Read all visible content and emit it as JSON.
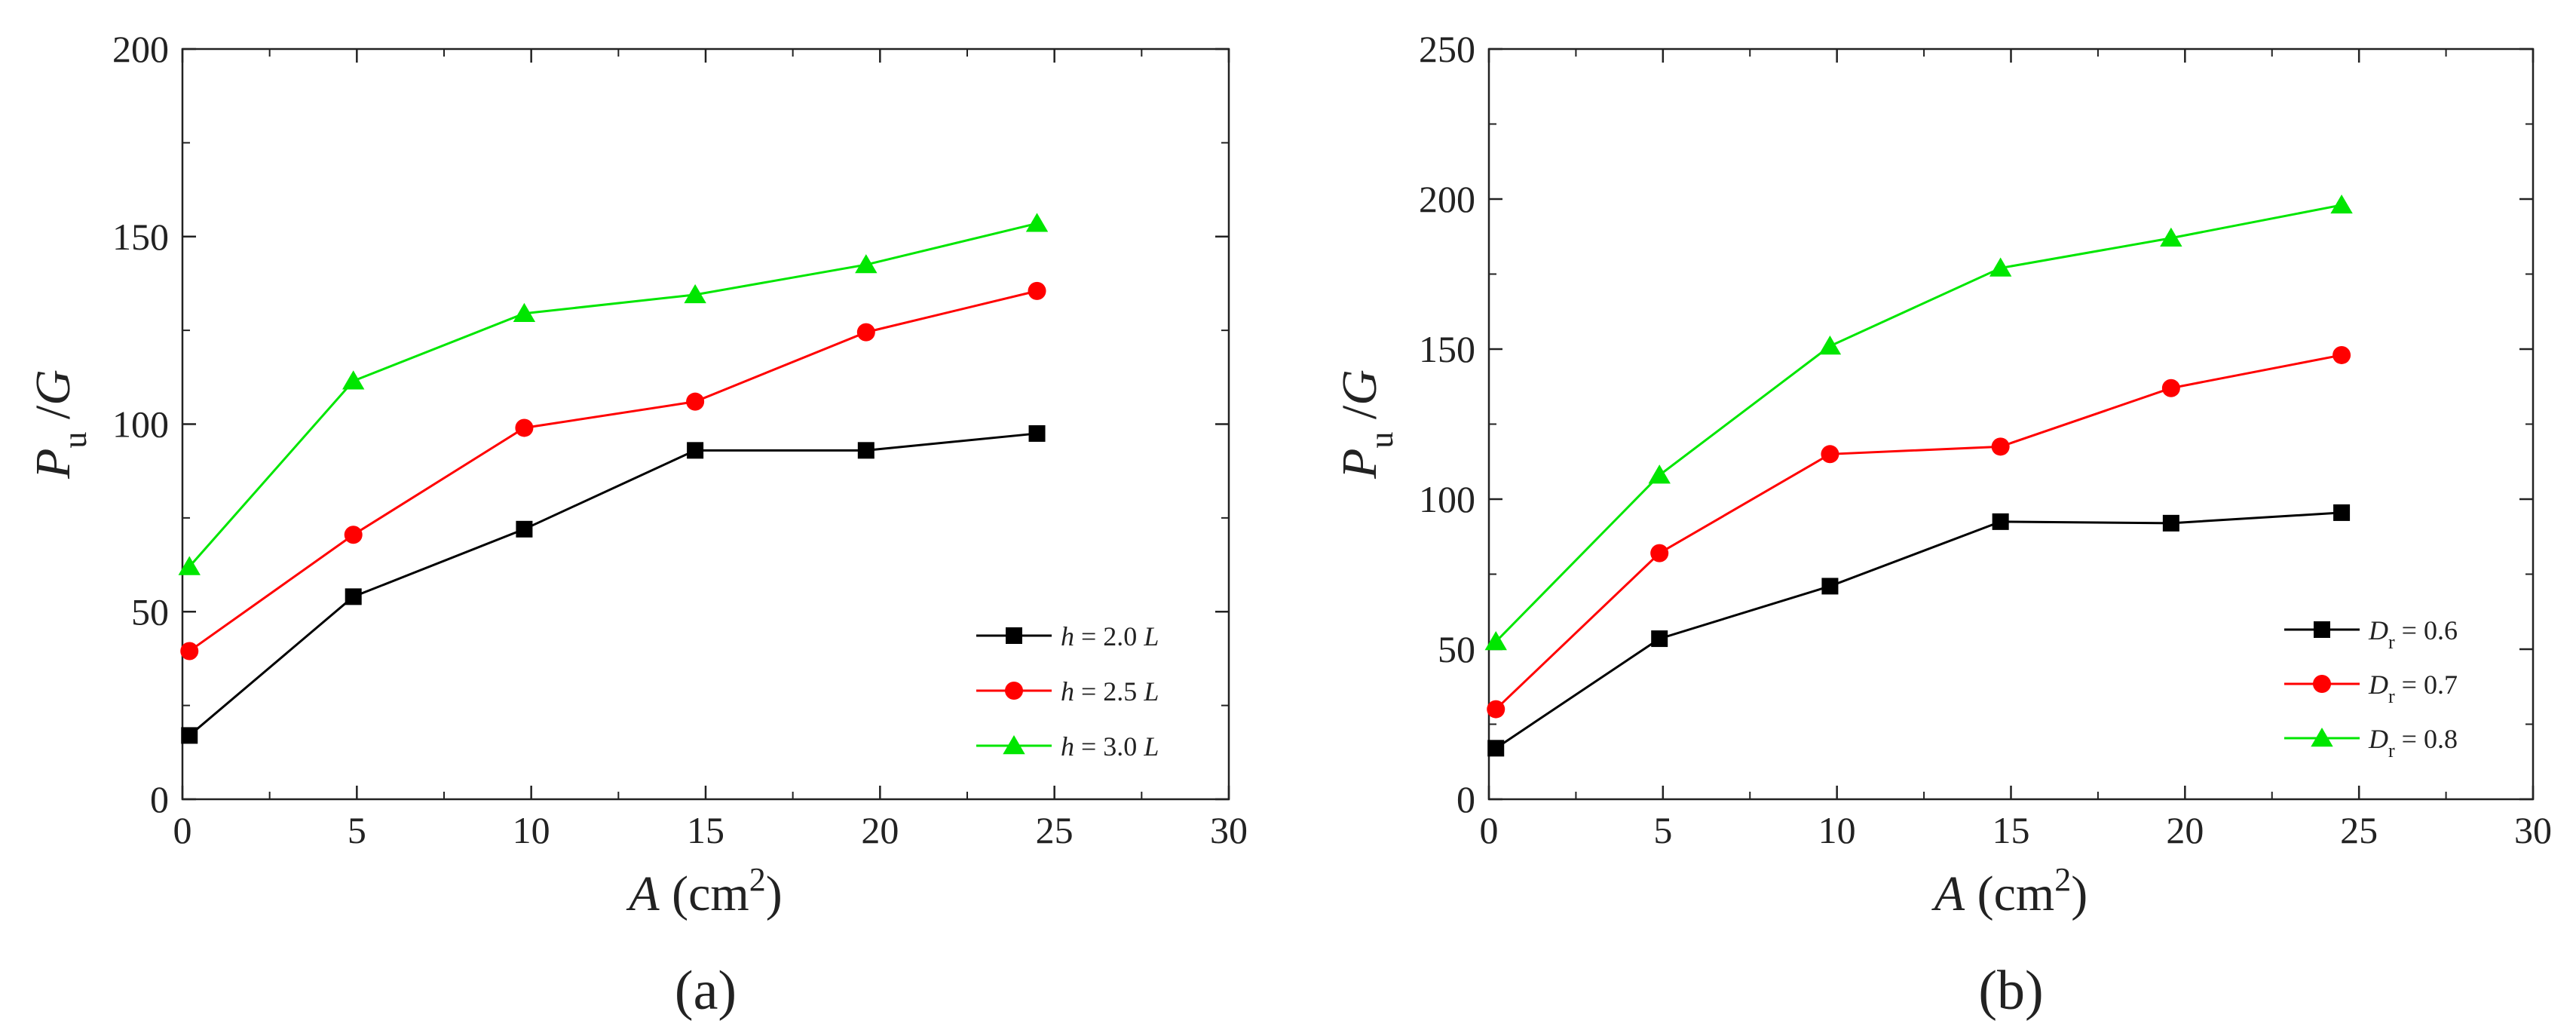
{
  "chart_data": [
    {
      "type": "line",
      "panel_label": "(a)",
      "xlabel": {
        "var": "A",
        "unit_pre": " (cm",
        "unit_exp": "2",
        "unit_post": ")"
      },
      "ylabel": {
        "main": "P",
        "sub": "u",
        "post": " /",
        "var2": "G"
      },
      "xlim": [
        0,
        30
      ],
      "ylim": [
        0,
        200
      ],
      "xticks": [
        0,
        5,
        10,
        15,
        20,
        25,
        30
      ],
      "yticks": [
        0,
        50,
        100,
        150,
        200
      ],
      "legend_position": "center-right",
      "series": [
        {
          "name": "h = 2.0 L",
          "legend": {
            "var": "h",
            "mid": " = 2.0 ",
            "var2": "L"
          },
          "color": "#000000",
          "marker": "square",
          "x": [
            0.2,
            4.9,
            9.8,
            14.7,
            19.6,
            24.5
          ],
          "y": [
            17,
            54,
            72,
            93,
            93,
            97.5
          ]
        },
        {
          "name": "h = 2.5 L",
          "legend": {
            "var": "h",
            "mid": " = 2.5 ",
            "var2": "L"
          },
          "color": "#ff0000",
          "marker": "circle",
          "x": [
            0.2,
            4.9,
            9.8,
            14.7,
            19.6,
            24.5
          ],
          "y": [
            39.5,
            70.5,
            99,
            106,
            124.5,
            135.5
          ]
        },
        {
          "name": "h = 3.0 L",
          "legend": {
            "var": "h",
            "mid": " = 3.0 ",
            "var2": "L"
          },
          "color": "#00e600",
          "marker": "triangle",
          "x": [
            0.2,
            4.9,
            9.8,
            14.7,
            19.6,
            24.5
          ],
          "y": [
            62,
            111.5,
            129.5,
            134.5,
            142.5,
            153.5
          ]
        }
      ]
    },
    {
      "type": "line",
      "panel_label": "(b)",
      "xlabel": {
        "var": "A",
        "unit_pre": " (cm",
        "unit_exp": "2",
        "unit_post": ")"
      },
      "ylabel": {
        "main": "P",
        "sub": "u",
        "post": " /",
        "var2": "G"
      },
      "xlim": [
        0,
        30
      ],
      "ylim": [
        0,
        250
      ],
      "xticks": [
        0,
        5,
        10,
        15,
        20,
        25,
        30
      ],
      "yticks": [
        0,
        50,
        100,
        150,
        200,
        250
      ],
      "legend_position": "bottom-right",
      "series": [
        {
          "name": "Dr = 0.6",
          "legend": {
            "var": "D",
            "sub": "r",
            "mid": " = 0.6"
          },
          "color": "#000000",
          "marker": "square",
          "x": [
            0.2,
            4.9,
            9.8,
            14.7,
            19.6,
            24.5
          ],
          "y": [
            17,
            53.5,
            71,
            92.5,
            92,
            95.5
          ]
        },
        {
          "name": "Dr = 0.7",
          "legend": {
            "var": "D",
            "sub": "r",
            "mid": " = 0.7"
          },
          "color": "#ff0000",
          "marker": "circle",
          "x": [
            0.2,
            4.9,
            9.8,
            14.7,
            19.6,
            24.5
          ],
          "y": [
            30,
            82,
            115,
            117.5,
            137,
            148
          ]
        },
        {
          "name": "Dr = 0.8",
          "legend": {
            "var": "D",
            "sub": "r",
            "mid": " = 0.8"
          },
          "color": "#00e600",
          "marker": "triangle",
          "x": [
            0.2,
            4.9,
            9.8,
            14.7,
            19.6,
            24.5
          ],
          "y": [
            52.5,
            108,
            151,
            177,
            187,
            198
          ]
        }
      ]
    }
  ]
}
